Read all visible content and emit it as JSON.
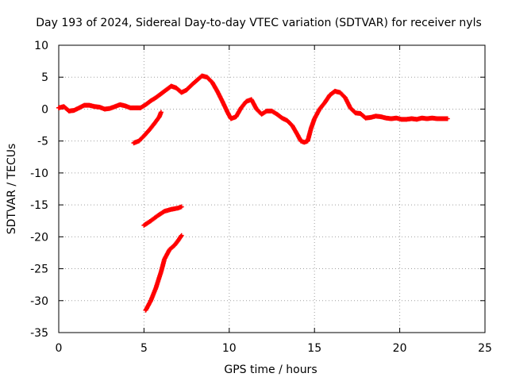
{
  "chart_data": {
    "type": "scatter",
    "title": "Day 193 of 2024, Sidereal Day-to-day VTEC variation (SDTVAR) for receiver nyls",
    "xlabel": "GPS time / hours",
    "ylabel": "SDTVAR / TECUs",
    "xlim": [
      0,
      25
    ],
    "ylim": [
      -35,
      10
    ],
    "xticks": [
      0,
      5,
      10,
      15,
      20,
      25
    ],
    "yticks": [
      10,
      5,
      0,
      -5,
      -10,
      -15,
      -20,
      -25,
      -30,
      -35
    ],
    "grid": true,
    "marker": "plus",
    "color": "#ff0000",
    "series": [
      {
        "name": "main",
        "points": [
          [
            0.0,
            0.2
          ],
          [
            0.3,
            0.4
          ],
          [
            0.6,
            -0.3
          ],
          [
            0.9,
            -0.2
          ],
          [
            1.2,
            0.2
          ],
          [
            1.5,
            0.6
          ],
          [
            1.8,
            0.6
          ],
          [
            2.1,
            0.4
          ],
          [
            2.4,
            0.3
          ],
          [
            2.7,
            0.0
          ],
          [
            3.0,
            0.1
          ],
          [
            3.3,
            0.4
          ],
          [
            3.6,
            0.7
          ],
          [
            3.9,
            0.5
          ],
          [
            4.2,
            0.2
          ],
          [
            4.5,
            0.2
          ],
          [
            4.8,
            0.2
          ],
          [
            5.1,
            0.7
          ],
          [
            5.4,
            1.3
          ],
          [
            5.7,
            1.8
          ],
          [
            6.0,
            2.4
          ],
          [
            6.3,
            3.0
          ],
          [
            6.6,
            3.6
          ],
          [
            6.9,
            3.3
          ],
          [
            7.2,
            2.6
          ],
          [
            7.5,
            3.0
          ],
          [
            7.8,
            3.8
          ],
          [
            8.1,
            4.5
          ],
          [
            8.4,
            5.2
          ],
          [
            8.7,
            5.0
          ],
          [
            9.0,
            4.2
          ],
          [
            9.3,
            2.8
          ],
          [
            9.6,
            1.2
          ],
          [
            9.9,
            -0.5
          ],
          [
            10.1,
            -1.5
          ],
          [
            10.4,
            -1.2
          ],
          [
            10.7,
            0.2
          ],
          [
            11.0,
            1.2
          ],
          [
            11.3,
            1.5
          ],
          [
            11.6,
            0.0
          ],
          [
            11.9,
            -0.8
          ],
          [
            12.2,
            -0.3
          ],
          [
            12.5,
            -0.3
          ],
          [
            12.8,
            -0.8
          ],
          [
            13.1,
            -1.4
          ],
          [
            13.4,
            -1.8
          ],
          [
            13.7,
            -2.6
          ],
          [
            14.0,
            -4.0
          ],
          [
            14.2,
            -5.0
          ],
          [
            14.4,
            -5.2
          ],
          [
            14.6,
            -5.0
          ],
          [
            14.8,
            -3.0
          ],
          [
            15.0,
            -1.5
          ],
          [
            15.3,
            0.0
          ],
          [
            15.6,
            1.0
          ],
          [
            15.9,
            2.2
          ],
          [
            16.2,
            2.8
          ],
          [
            16.5,
            2.6
          ],
          [
            16.8,
            1.8
          ],
          [
            17.1,
            0.2
          ],
          [
            17.4,
            -0.6
          ],
          [
            17.7,
            -0.7
          ],
          [
            18.0,
            -1.4
          ],
          [
            18.3,
            -1.3
          ],
          [
            18.6,
            -1.1
          ],
          [
            18.9,
            -1.2
          ],
          [
            19.2,
            -1.4
          ],
          [
            19.5,
            -1.5
          ],
          [
            19.8,
            -1.4
          ],
          [
            20.1,
            -1.6
          ],
          [
            20.4,
            -1.6
          ],
          [
            20.7,
            -1.5
          ],
          [
            21.0,
            -1.6
          ],
          [
            21.3,
            -1.4
          ],
          [
            21.6,
            -1.5
          ],
          [
            21.9,
            -1.4
          ],
          [
            22.2,
            -1.5
          ],
          [
            22.5,
            -1.5
          ],
          [
            22.8,
            -1.5
          ]
        ]
      },
      {
        "name": "arc-1",
        "points": [
          [
            4.4,
            -5.3
          ],
          [
            4.7,
            -5.0
          ],
          [
            5.0,
            -4.2
          ],
          [
            5.3,
            -3.3
          ],
          [
            5.6,
            -2.3
          ],
          [
            5.9,
            -1.2
          ],
          [
            6.0,
            -0.5
          ]
        ]
      },
      {
        "name": "arc-2",
        "points": [
          [
            5.0,
            -18.2
          ],
          [
            5.4,
            -17.5
          ],
          [
            5.8,
            -16.7
          ],
          [
            6.2,
            -16.0
          ],
          [
            6.6,
            -15.7
          ],
          [
            7.0,
            -15.5
          ],
          [
            7.2,
            -15.3
          ]
        ]
      },
      {
        "name": "arc-3",
        "points": [
          [
            5.1,
            -31.5
          ],
          [
            5.4,
            -30.0
          ],
          [
            5.7,
            -28.0
          ],
          [
            6.0,
            -25.5
          ],
          [
            6.2,
            -23.5
          ],
          [
            6.5,
            -22.0
          ],
          [
            6.8,
            -21.3
          ],
          [
            7.0,
            -20.6
          ],
          [
            7.2,
            -19.8
          ]
        ]
      }
    ]
  }
}
